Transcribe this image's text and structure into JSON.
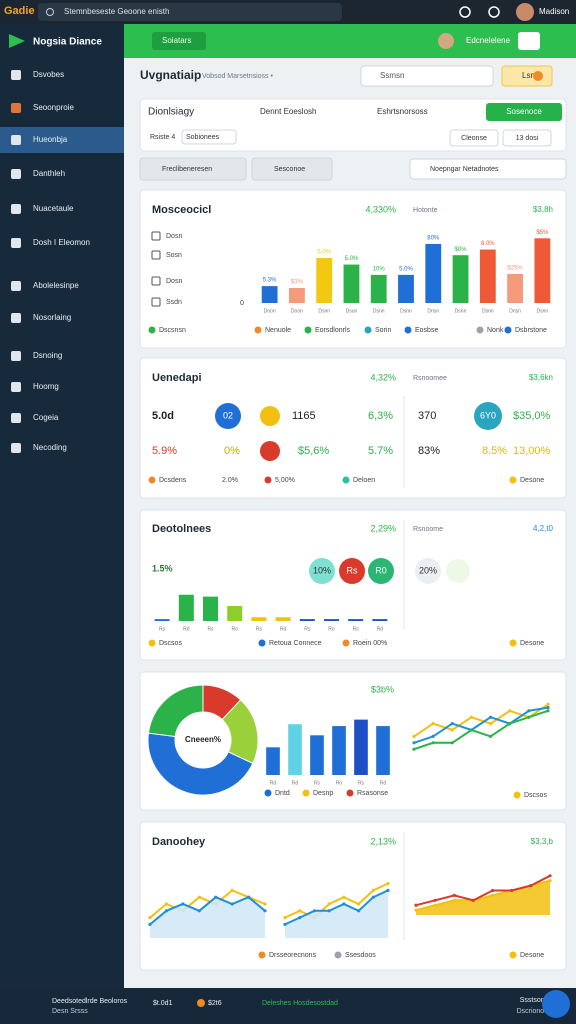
{
  "topbar": {
    "logo": "Gadie",
    "search": "Stemnbeseste Geoone enisth",
    "user": "Madison"
  },
  "sidebar": {
    "brand": "Nogsia Diance",
    "items": [
      "Dsvobes",
      "Seoonproie",
      "Hueonbja",
      "Danthleh",
      "Nuacetaule",
      "Dosh I Eleomon",
      "Abolelesinpe",
      "Nosorlaing",
      "Dsnoing",
      "Hoomg",
      "Cogeia",
      "Necoding"
    ],
    "active": 2
  },
  "header": {
    "button": "Soiatars",
    "action": "Edcnelelene"
  },
  "page": {
    "title": "Uvgnatiaip",
    "subtitle": "Vobsod Marsetnsioss •",
    "search": "Ssmsn",
    "button": "Lsn"
  },
  "toolbar": {
    "title": "Dionlsiagy",
    "links": [
      "Dennt Eoeslosh",
      "Eshrtsnorsoss"
    ],
    "primary": "Sosenoce",
    "filters": [
      "Rsiste 4",
      "Sobionees"
    ],
    "right": [
      "Cleonse",
      "13 dosi"
    ]
  },
  "filters": {
    "chips": [
      "Freclibeneresen",
      "Sesconoe"
    ],
    "search": "Noepngar Netadnotes"
  },
  "revenue": {
    "title": "Mosceocicl",
    "stat": "4,330%",
    "label": "Hotonte",
    "amount": "$3,8h",
    "rows": [
      "Dosn",
      "Sosn",
      "Dosn",
      "Ssdn"
    ],
    "chart": {
      "type": "bar",
      "categories": [
        "Doon",
        "Doon",
        "Dsnn",
        "Dsun",
        "Dsnn",
        "Dsnn",
        "Dnsn",
        "Dsnn",
        "Dsnn",
        "Dnsn",
        "Dsnn"
      ],
      "values": [
        18,
        16,
        48,
        41,
        30,
        30,
        63,
        51,
        57,
        31,
        69
      ],
      "colors": [
        "#1f6fd6",
        "#f59a7a",
        "#f2c810",
        "#2bb34a",
        "#2bb34a",
        "#1f6fd6",
        "#1f6fd6",
        "#2bb34a",
        "#ee5a35",
        "#f59a7a",
        "#ee5a35"
      ],
      "annotations": [
        "5.3%",
        "$3%",
        "5.0%",
        "5.0%",
        "10%",
        "5.0%",
        "80%",
        "$0%",
        "8.0%",
        "$25%",
        "$5%"
      ],
      "ylim": [
        0,
        80
      ],
      "yticks": [
        0
      ]
    },
    "legend": [
      {
        "name": "Dscsnsn",
        "color": "#2bb34a"
      },
      {
        "name": "Nenuole",
        "color": "#f08a24"
      },
      {
        "name": "Eorsdlonrls",
        "color": "#2bb34a"
      },
      {
        "name": "Sorin",
        "color": "#2aa5c0"
      },
      {
        "name": "Eosbse",
        "color": "#1f6fd6"
      },
      {
        "name": "Nonk",
        "color": "#9aa3ad"
      },
      {
        "name": "Dsbrstone",
        "color": "#1f6fd6"
      }
    ]
  },
  "summary": {
    "title": "Uenedapi",
    "stat": "4,32%",
    "label": "Rsnoomee",
    "amount": "$3,6kn",
    "cells": [
      {
        "text": "5.0d",
        "color": "#222222"
      },
      {
        "text": "1165",
        "color": "#222222"
      },
      {
        "text": "6,3%",
        "color": "#2bb34a"
      },
      {
        "text": "370",
        "color": "#222222"
      },
      {
        "text": "$35,0%",
        "color": "#2bb34a"
      },
      {
        "text": "5.9%",
        "color": "#d93a2b"
      },
      {
        "text": "0%",
        "color": "#c9a800"
      },
      {
        "text": "$5,6%",
        "color": "#2bb34a"
      },
      {
        "text": "5.7%",
        "color": "#2bb34a"
      },
      {
        "text": "83%",
        "color": "#222222"
      },
      {
        "text": "8.5%",
        "color": "#e6b800"
      },
      {
        "text": "13,00%",
        "color": "#e6b800"
      }
    ],
    "badges": [
      {
        "label": "02",
        "color": "#1f6fd6"
      },
      {
        "color": "#f2c010"
      },
      {
        "color": "#d93a2b"
      },
      {
        "label": "6Y0",
        "color": "#2aa5c0"
      }
    ],
    "foot": [
      {
        "name": "Dcsdens",
        "color": "#f08a24"
      },
      {
        "name": "2.0%"
      },
      {
        "name": "5,00%",
        "color": "#d93a2b"
      },
      {
        "name": "Deloen",
        "color": "#2bc0a0"
      },
      {
        "name": "Desone",
        "color": "#f2c010"
      }
    ]
  },
  "activity": {
    "title": "Deotolnees",
    "stat": "2,29%",
    "label": "Rsnoome",
    "amount": "4,2,t0",
    "lead": "1.5%",
    "badges": [
      {
        "label": "10%",
        "color": "#7de0d0"
      },
      {
        "label": "Rs",
        "color": "#d93a2b"
      },
      {
        "label": "R0",
        "color": "#2bb673"
      },
      {
        "label": "20%",
        "color": "#eceff2"
      },
      {
        "color": "#eef8e6"
      }
    ],
    "chart": {
      "type": "bar",
      "categories": [
        "Rs",
        "Rd",
        "Rs",
        "Ro",
        "Rs",
        "Rd",
        "Rs",
        "Ro",
        "Rs",
        "Rd"
      ],
      "values": [
        2,
        28,
        26,
        16,
        4,
        4,
        2,
        2,
        2,
        2
      ],
      "colors": [
        "#1f6fd6",
        "#2bb34a",
        "#2bb34a",
        "#8ccf2a",
        "#f2c010",
        "#f2c010",
        "#1f4fc6",
        "#1f4fc6",
        "#1f4fc6",
        "#1f4fc6"
      ],
      "ylim": [
        0,
        32
      ]
    },
    "legend": [
      {
        "name": "Dscsos",
        "color": "#f2c010"
      },
      {
        "name": "Retoua Connece",
        "color": "#1f6fd6"
      },
      {
        "name": "Roein 00%",
        "color": "#f08a24"
      },
      {
        "name": "Desone",
        "color": "#f2c010"
      }
    ]
  },
  "mix": {
    "stat": "$3b%",
    "donut": {
      "type": "pie",
      "center": "Cneeen%",
      "values": [
        12,
        20,
        45,
        23
      ],
      "colors": [
        "#d93a2b",
        "#9ad13a",
        "#1f6fd6",
        "#2bb34a"
      ]
    },
    "bars": {
      "type": "bar",
      "categories": [
        "Rd",
        "Rd",
        "Rs",
        "Ro",
        "Rs",
        "Rd"
      ],
      "values": [
        30,
        55,
        43,
        53,
        60,
        53
      ],
      "colors": [
        "#1f6fd6",
        "#5fd3e6",
        "#1f6fd6",
        "#1f6fd6",
        "#1f4fc6",
        "#1f6fd6"
      ],
      "ylim": [
        0,
        65
      ]
    },
    "legend": [
      {
        "name": "Dntd",
        "color": "#1f6fd6"
      },
      {
        "name": "Desnp",
        "color": "#f2c010"
      },
      {
        "name": "Rsasonse",
        "color": "#d93a2b"
      }
    ],
    "lines": {
      "type": "line",
      "ylim": [
        0,
        10
      ],
      "series": [
        {
          "color": "#f2c010",
          "values": [
            4,
            6,
            5,
            7,
            6,
            8,
            7,
            9
          ]
        },
        {
          "color": "#1f8fd6",
          "values": [
            3,
            4,
            6,
            5,
            7,
            6,
            8,
            8.5
          ]
        },
        {
          "color": "#2bb34a",
          "values": [
            2,
            3,
            3,
            5,
            4,
            6,
            7,
            8
          ]
        }
      ]
    },
    "lines_legend": {
      "name": "Dscsos",
      "color": "#f2c010"
    }
  },
  "trend": {
    "title": "Danoohey",
    "stat": "2,13%",
    "amount": "$3,3,b",
    "charts": [
      {
        "type": "line",
        "ylim": [
          0,
          10
        ],
        "series": [
          {
            "color": "#f2c010",
            "values": [
              3,
              5,
              4,
              6,
              5,
              7,
              6,
              5
            ]
          },
          {
            "color": "#1f8fd6",
            "values": [
              2,
              4,
              5,
              4,
              6,
              5,
              6,
              4
            ],
            "fill": "#cfe6f7"
          }
        ]
      },
      {
        "type": "line",
        "ylim": [
          0,
          10
        ],
        "series": [
          {
            "color": "#f2c010",
            "values": [
              3,
              4,
              3,
              5,
              6,
              5,
              7,
              8
            ]
          },
          {
            "color": "#1f8fd6",
            "values": [
              2,
              3,
              4,
              4,
              5,
              4,
              6,
              7
            ],
            "fill": "#cfe6f7"
          }
        ]
      },
      {
        "type": "line",
        "ylim": [
          0,
          10
        ],
        "series": [
          {
            "color": "#f2c010",
            "values": [
              1,
              2,
              3,
              3,
              4,
              5,
              6,
              7
            ],
            "fill": "#f2c010"
          },
          {
            "color": "#d93a2b",
            "values": [
              2,
              3,
              4,
              3,
              5,
              5,
              6,
              8
            ]
          }
        ]
      }
    ],
    "legend": [
      {
        "name": "Drsseorecnons",
        "color": "#f08a24"
      },
      {
        "name": "Ssesdoos",
        "color": "#9aa3ad"
      },
      {
        "name": "Desone",
        "color": "#f2c010"
      }
    ]
  },
  "footer": {
    "title": "Deedsotedlrde Beoloros",
    "sub": "Desn Srsss",
    "stats": [
      "$t.0d1",
      "$2t6"
    ],
    "status": "Deleshes Hosdesostdad",
    "right": "Ssstsonos",
    "right_sub": "Dscrionoeo"
  }
}
